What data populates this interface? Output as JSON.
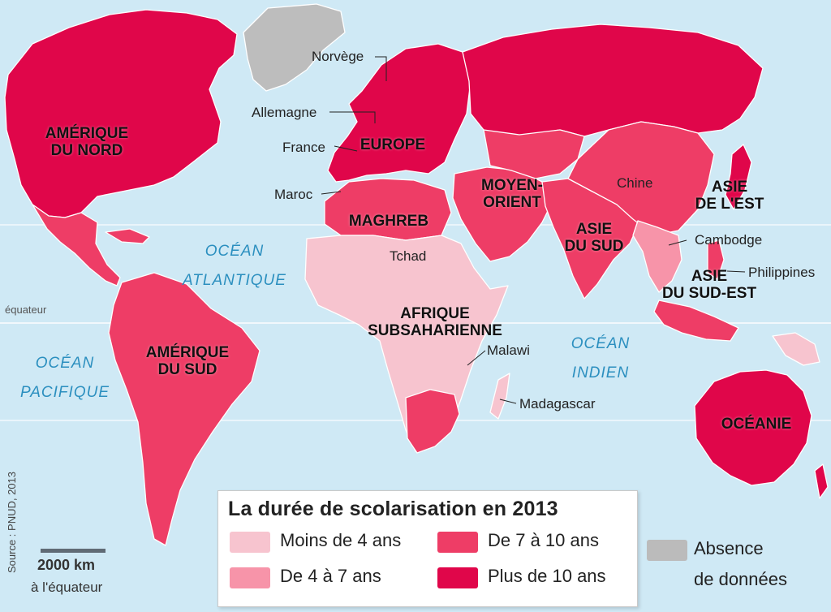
{
  "legend": {
    "title": "La durée de scolarisation en 2013",
    "items": [
      {
        "label": "Moins de 4 ans",
        "color": "#f7c4cf"
      },
      {
        "label": "De 4 à 7 ans",
        "color": "#f794a9"
      },
      {
        "label": "De 7 à 10 ans",
        "color": "#ee3d66"
      },
      {
        "label": "Plus de 10 ans",
        "color": "#e0064a"
      },
      {
        "label_line1": "Absence",
        "label_line2": "de données",
        "color": "#bbbbbb"
      }
    ]
  },
  "regions": {
    "amerique_nord": [
      "AMÉRIQUE",
      "DU NORD"
    ],
    "europe": "EUROPE",
    "moyen_orient": [
      "MOYEN-",
      "ORIENT"
    ],
    "maghreb": "MAGHREB",
    "asie_sud": [
      "ASIE",
      "DU SUD"
    ],
    "asie_est": [
      "ASIE",
      "DE L'EST"
    ],
    "asie_sud_est": [
      "ASIE",
      "DU SUD-EST"
    ],
    "afrique_subsaharienne": [
      "AFRIQUE",
      "SUBSAHARIENNE"
    ],
    "amerique_sud": [
      "AMÉRIQUE",
      "DU SUD"
    ],
    "oceanie": "OCÉANIE"
  },
  "countries": {
    "norvege": "Norvège",
    "allemagne": "Allemagne",
    "france": "France",
    "maroc": "Maroc",
    "tchad": "Tchad",
    "chine": "Chine",
    "cambodge": "Cambodge",
    "philippines": "Philippines",
    "malawi": "Malawi",
    "madagascar": "Madagascar"
  },
  "oceans": {
    "atlantique": [
      "OCÉAN",
      "ATLANTIQUE"
    ],
    "pacifique": [
      "OCÉAN",
      "PACIFIQUE"
    ],
    "indien": [
      "OCÉAN",
      "INDIEN"
    ]
  },
  "equator_label": "équateur",
  "source": "Source : PNUD, 2013",
  "scale": {
    "label": "2000 km",
    "sub": "à l'équateur"
  }
}
